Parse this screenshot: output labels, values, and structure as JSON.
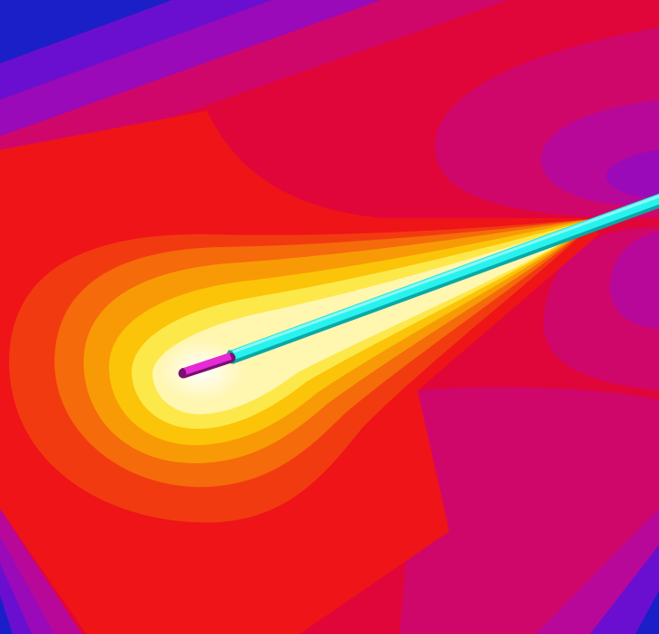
{
  "colors": {
    "field_base": "#e0063a",
    "field_magenta": "#d0076a",
    "field_purple_light": "#b8089a",
    "field_purple": "#9a0ab8",
    "field_violet": "#6a0fd0",
    "field_blue": "#1a1fc8",
    "outer_red": "#ee1418",
    "orange_red": "#f23a10",
    "orange": "#f56a0a",
    "amber": "#f89a06",
    "yellow_orange": "#fbc408",
    "yellow": "#fde84a",
    "pale_yellow": "#fff6b0",
    "hot_core": "#ffffff",
    "probe_shaft": "#28f2ee",
    "probe_shaft_dark": "#0aa8a8",
    "probe_tip": "#e62ad8",
    "probe_tip_dark": "#7a1070"
  },
  "icons": {
    "probe": "ablation-probe-icon"
  }
}
